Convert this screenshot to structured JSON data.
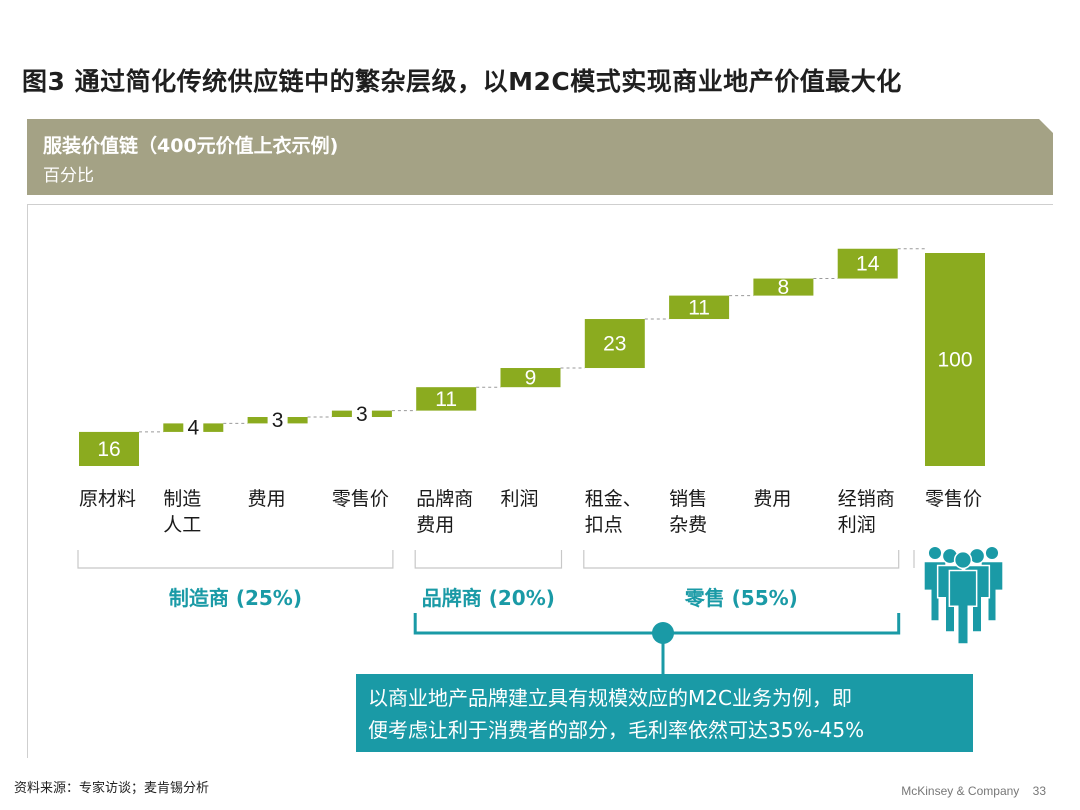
{
  "title": "图3 通过简化传统供应链中的繁杂层级，以M2C模式实现商业地产价值最大化",
  "banner": {
    "title": "服装价值链（400元价值上衣示例)",
    "subtitle": "百分比"
  },
  "chart_data": {
    "type": "bar",
    "subtype": "waterfall",
    "unit": "%",
    "ylim": [
      0,
      100
    ],
    "colors": {
      "bar": "#8bab1f",
      "label_on_bar": "#ffffff",
      "connector": "#9a9a9a"
    },
    "steps": [
      {
        "category": "原材料",
        "value": 16,
        "kind": "increment",
        "label_position": "inside"
      },
      {
        "category": "制造\n人工",
        "value": 4,
        "kind": "increment",
        "label_position": "center-outside"
      },
      {
        "category": "费用",
        "value": 3,
        "kind": "increment",
        "label_position": "center-outside"
      },
      {
        "category": "零售价",
        "value": 3,
        "kind": "increment",
        "label_position": "center-outside"
      },
      {
        "category": "品牌商\n费用",
        "value": 11,
        "kind": "increment",
        "label_position": "inside"
      },
      {
        "category": "利润",
        "value": 9,
        "kind": "increment",
        "label_position": "inside"
      },
      {
        "category": "租金、\n扣点",
        "value": 23,
        "kind": "increment",
        "label_position": "inside"
      },
      {
        "category": "销售\n杂费",
        "value": 11,
        "kind": "increment",
        "label_position": "inside"
      },
      {
        "category": "费用",
        "value": 8,
        "kind": "increment",
        "label_position": "inside"
      },
      {
        "category": "经销商\n利润",
        "value": 14,
        "kind": "increment",
        "label_position": "inside"
      },
      {
        "category": "零售价",
        "value": 100,
        "kind": "total",
        "label_position": "inside"
      }
    ],
    "groups": [
      {
        "label": "制造商 (25%)",
        "from_index": 0,
        "to_index": 3
      },
      {
        "label": "品牌商 (20%)",
        "from_index": 4,
        "to_index": 5
      },
      {
        "label": "零售 (55%)",
        "from_index": 6,
        "to_index": 9
      }
    ],
    "group_label_color": "#1a9aa6"
  },
  "callout": {
    "line1": "以商业地产品牌建立具有规模效应的M2C业务为例，即",
    "line2": "便考虑让利于消费者的部分，毛利率依然可达35%-45%",
    "color": "#1a9aa6"
  },
  "consumer_icon": "consumer-group-icon",
  "source": "资料来源：专家访谈；麦肯锡分析",
  "footer": {
    "company": "McKinsey & Company",
    "page": "33"
  }
}
